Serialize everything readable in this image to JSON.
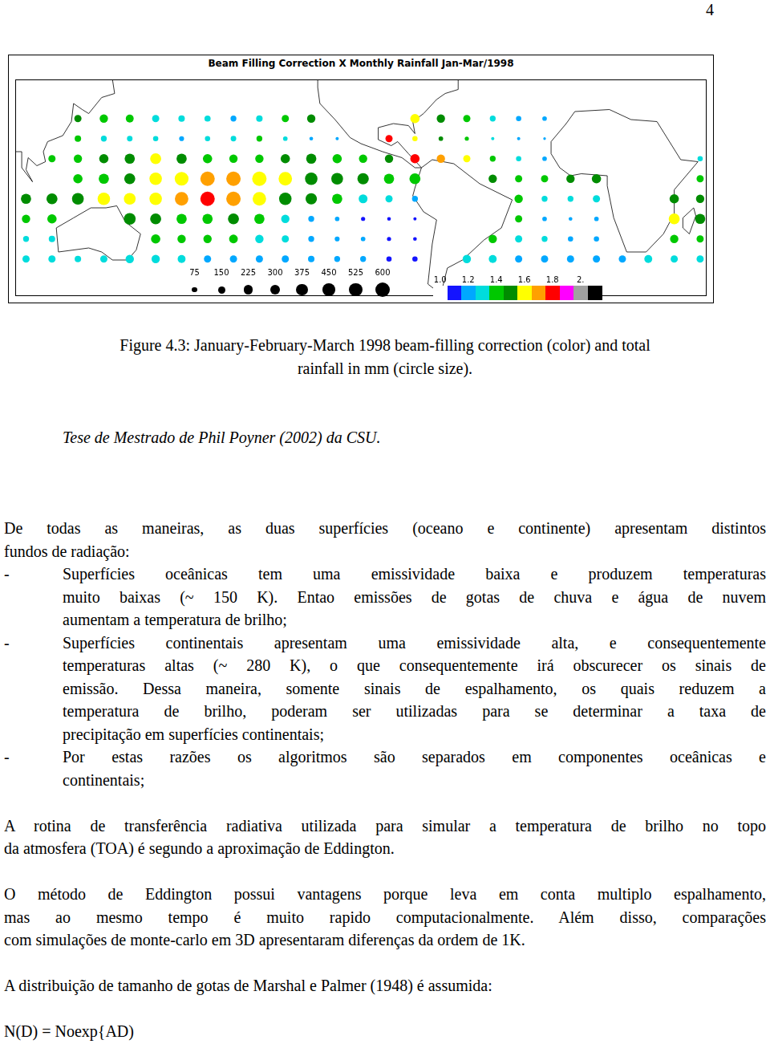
{
  "page_number": "4",
  "chart_data": {
    "type": "bubble",
    "title": "Beam Filling Correction X Monthly Rainfall Jan-Mar/1998",
    "x": [
      100,
      112,
      124,
      136,
      148,
      160,
      172,
      184,
      196,
      208,
      220,
      232,
      244,
      256,
      268,
      280,
      292,
      304,
      316,
      328,
      340,
      352,
      364,
      376,
      388,
      400,
      412
    ],
    "y": [
      32.5,
      22.5,
      12.5,
      2.5,
      -7.5,
      -17.5,
      -27.5,
      -37.5
    ],
    "rainfall": [
      [
        null,
        null,
        150,
        200,
        180,
        150,
        120,
        110,
        100,
        120,
        150,
        200,
        null,
        null,
        null,
        250,
        200,
        150,
        100,
        80,
        60,
        null,
        null,
        null,
        null,
        null,
        null
      ],
      [
        null,
        null,
        120,
        100,
        90,
        80,
        70,
        80,
        90,
        100,
        60,
        40,
        30,
        null,
        150,
        80,
        60,
        50,
        30,
        30,
        20,
        null,
        null,
        null,
        null,
        null,
        null
      ],
      [
        null,
        150,
        200,
        250,
        300,
        350,
        300,
        250,
        200,
        200,
        250,
        300,
        250,
        200,
        200,
        250,
        200,
        150,
        100,
        80,
        60,
        null,
        null,
        null,
        null,
        null,
        80
      ],
      [
        null,
        null,
        250,
        300,
        350,
        450,
        550,
        600,
        600,
        600,
        525,
        450,
        400,
        375,
        300,
        350,
        null,
        null,
        200,
        150,
        150,
        200,
        250,
        null,
        null,
        null,
        150
      ],
      [
        300,
        350,
        400,
        450,
        400,
        450,
        525,
        600,
        600,
        525,
        450,
        375,
        300,
        225,
        150,
        100,
        null,
        null,
        null,
        200,
        100,
        100,
        150,
        null,
        null,
        250,
        200
      ],
      [
        200,
        250,
        null,
        null,
        400,
        350,
        300,
        300,
        350,
        300,
        200,
        100,
        60,
        50,
        40,
        30,
        null,
        null,
        null,
        150,
        60,
        40,
        60,
        null,
        null,
        350,
        300
      ],
      [
        100,
        120,
        null,
        null,
        null,
        250,
        200,
        200,
        220,
        200,
        150,
        100,
        70,
        60,
        50,
        40,
        null,
        null,
        200,
        150,
        100,
        80,
        80,
        null,
        null,
        200,
        150
      ],
      [
        150,
        150,
        120,
        150,
        200,
        200,
        180,
        150,
        150,
        150,
        150,
        120,
        100,
        100,
        80,
        80,
        null,
        200,
        180,
        150,
        150,
        150,
        150,
        150,
        180,
        150,
        150
      ]
    ],
    "correction": [
      [
        null,
        null,
        1.5,
        1.4,
        1.4,
        1.3,
        1.3,
        1.3,
        1.2,
        1.3,
        1.4,
        1.5,
        null,
        null,
        null,
        1.6,
        1.5,
        1.4,
        1.3,
        1.2,
        1.2,
        null,
        null,
        null,
        null,
        null,
        null
      ],
      [
        null,
        null,
        1.4,
        1.3,
        1.3,
        1.3,
        1.2,
        1.3,
        1.3,
        1.4,
        1.3,
        1.2,
        1.2,
        null,
        1.8,
        1.6,
        1.5,
        1.4,
        1.3,
        1.2,
        1.2,
        null,
        null,
        null,
        null,
        null,
        null
      ],
      [
        null,
        1.4,
        1.4,
        1.5,
        1.5,
        1.6,
        1.5,
        1.4,
        1.4,
        1.4,
        1.5,
        1.5,
        1.4,
        1.4,
        1.5,
        1.8,
        1.7,
        1.6,
        1.4,
        1.3,
        1.2,
        null,
        null,
        null,
        null,
        null,
        1.3
      ],
      [
        null,
        null,
        1.4,
        1.4,
        1.5,
        1.6,
        1.6,
        1.7,
        1.7,
        1.6,
        1.6,
        1.5,
        1.5,
        1.5,
        1.4,
        1.4,
        null,
        null,
        1.5,
        1.4,
        1.4,
        1.5,
        1.5,
        null,
        null,
        null,
        1.4
      ],
      [
        1.5,
        1.5,
        1.5,
        1.6,
        1.6,
        1.6,
        1.7,
        1.8,
        1.7,
        1.6,
        1.5,
        1.5,
        1.4,
        1.3,
        1.3,
        1.2,
        null,
        null,
        null,
        1.4,
        1.3,
        1.3,
        1.3,
        null,
        null,
        1.5,
        1.5
      ],
      [
        1.4,
        1.4,
        null,
        null,
        1.5,
        1.5,
        1.4,
        1.4,
        1.5,
        1.4,
        1.3,
        1.2,
        1.2,
        1.1,
        1.1,
        1.1,
        null,
        null,
        null,
        1.4,
        1.2,
        1.2,
        1.2,
        null,
        null,
        1.6,
        1.5
      ],
      [
        1.3,
        1.3,
        null,
        null,
        null,
        1.4,
        1.4,
        1.4,
        1.4,
        1.3,
        1.3,
        1.2,
        1.2,
        1.2,
        1.1,
        1.1,
        null,
        null,
        1.4,
        1.3,
        1.3,
        1.2,
        1.2,
        null,
        null,
        1.4,
        1.4
      ],
      [
        1.3,
        1.3,
        1.3,
        1.3,
        1.3,
        1.3,
        1.3,
        1.2,
        1.2,
        1.2,
        1.2,
        1.2,
        1.2,
        1.2,
        1.1,
        1.1,
        null,
        1.3,
        1.3,
        1.2,
        1.2,
        1.2,
        1.2,
        1.2,
        1.3,
        1.3,
        1.3
      ]
    ],
    "xlim": [
      95,
      415
    ],
    "ylim": [
      -56,
      52
    ],
    "tick_labels": false,
    "grid": false,
    "size_legend": [
      75,
      150,
      225,
      300,
      375,
      450,
      525,
      600
    ],
    "color_bar": {
      "range": [
        0.95,
        2.15
      ],
      "ticks": [
        {
          "value": 1.0,
          "label": "1.0"
        },
        1.2,
        1.4,
        1.6,
        1.8,
        {
          "value": 2.0,
          "label": "2."
        }
      ],
      "colors": [
        "#ffffff",
        "#1414ff",
        "#00a8ff",
        "#00dcdc",
        "#00c800",
        "#008c00",
        "#ffff00",
        "#ffa000",
        "#ff0000",
        "#ff00ff",
        "#a0a0a0",
        "#000000"
      ]
    }
  },
  "caption": [
    "Figure 4.3: January-February-March 1998 beam-filling correction (color) and total",
    "rainfall in mm (circle size)."
  ],
  "source": "Tese de Mestrado de Phil Poyner (2002) da CSU.",
  "body": [
    {
      "type": "paragraph",
      "lines": [
        "De todas as maneiras, as duas superfícies (oceano e continente) apresentam distintos",
        "fundos de radiação:"
      ]
    },
    {
      "type": "list",
      "marker": "-",
      "items": [
        [
          "Superfícies oceânicas tem uma emissividade baixa e produzem temperaturas",
          "muito baixas (~ 150 K). Entao emissões de gotas de chuva e água de nuvem",
          "aumentam a temperatura de brilho;"
        ],
        [
          "Superfícies continentais apresentam uma emissividade alta, e consequentemente",
          "temperaturas altas (~ 280 K), o que consequentemente irá obscurecer os sinais de",
          "emissão. Dessa maneira, somente sinais de espalhamento, os quais reduzem a",
          "temperatura de brilho, poderam ser utilizadas para se determinar a taxa de",
          "precipitação em superfícies continentais;"
        ],
        [
          "Por estas razões os algoritmos são separados em componentes oceânicas e",
          "continentais;"
        ]
      ]
    },
    {
      "type": "paragraph",
      "lines": [
        "A rotina de transferência radiativa utilizada para simular a temperatura de brilho no topo",
        "da atmosfera (TOA) é segundo a aproximação de Eddington."
      ]
    },
    {
      "type": "paragraph",
      "lines": [
        "O método de Eddington possui vantagens porque leva em conta multiplo espalhamento,",
        "mas ao mesmo tempo é muito rapido computacionalmente. Além disso, comparações",
        "com simulações de monte-carlo em 3D apresentaram diferenças da ordem de 1K."
      ]
    },
    {
      "type": "paragraph",
      "lines": [
        "A distribuição de tamanho de gotas de Marshal e Palmer (1948) é assumida:"
      ]
    },
    {
      "type": "equation",
      "lines": [
        "N(D) = Noexp{AD)"
      ]
    }
  ]
}
